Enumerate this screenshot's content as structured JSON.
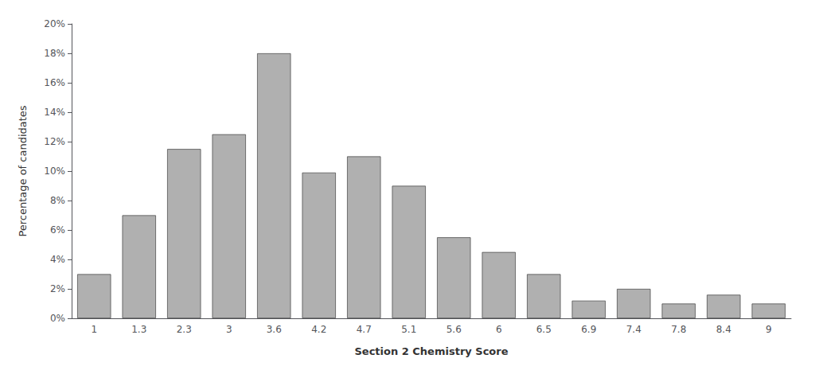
{
  "chart_data": {
    "type": "bar",
    "categories": [
      "1",
      "1.3",
      "2.3",
      "3",
      "3.6",
      "4.2",
      "4.7",
      "5.1",
      "5.6",
      "6",
      "6.5",
      "6.9",
      "7.4",
      "7.8",
      "8.4",
      "9"
    ],
    "values": [
      3.0,
      7.0,
      11.5,
      12.5,
      18.0,
      9.9,
      11.0,
      9.0,
      5.5,
      4.5,
      3.0,
      1.2,
      2.0,
      1.0,
      1.6,
      1.0
    ],
    "color": "#b0b0b0",
    "xlabel": "Section 2 Chemistry Score",
    "ylabel": "Percentage of candidates",
    "ylim": [
      0,
      20
    ],
    "yticks": [
      {
        "value": 0,
        "label": "0%"
      },
      {
        "value": 2,
        "label": "2%"
      },
      {
        "value": 4,
        "label": "4%"
      },
      {
        "value": 6,
        "label": "6%"
      },
      {
        "value": 8,
        "label": "8%"
      },
      {
        "value": 10,
        "label": "10%"
      },
      {
        "value": 12,
        "label": "12%"
      },
      {
        "value": 14,
        "label": "14%"
      },
      {
        "value": 16,
        "label": "16%"
      },
      {
        "value": 18,
        "label": "18%"
      },
      {
        "value": 20,
        "label": "20%"
      }
    ],
    "grid": false
  }
}
